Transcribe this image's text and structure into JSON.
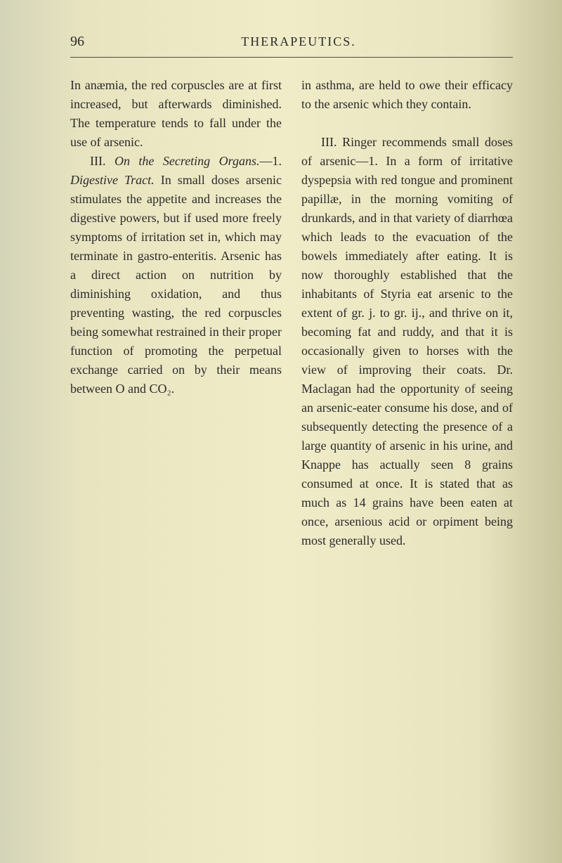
{
  "page_number": "96",
  "running_header": "THERAPEUTICS.",
  "left_column": {
    "para1": "In anæmia, the red corpuscles are at first increased, but afterwards diminished. The temperature tends to fall under the use of arsenic.",
    "para2_prefix": "III. ",
    "para2_italic1": "On the Secreting Organs.",
    "para2_mid1": "—1. ",
    "para2_italic2": "Digestive Tract.",
    "para2_rest": " In small doses arsenic stimulates the appetite and increases the digestive powers, but if used more freely symptoms of irritation set in, which may terminate in gastro-enteritis. Arsenic has a direct action on nutrition by diminishing oxidation, and thus preventing wasting, the red corpuscles being somewhat restrained in their proper function of promoting the perpetual exchange carried on by their means between O and CO₂."
  },
  "right_column": {
    "para1": "in asthma, are held to owe their efficacy to the arsenic which they contain.",
    "para2": "III. Ringer recommends small doses of arsenic—1. In a form of irritative dyspepsia with red tongue and prominent papillæ, in the morning vomiting of drunkards, and in that variety of diarrhœa which leads to the evacuation of the bowels immediately after eating. It is now thoroughly established that the inhabitants of Styria eat arsenic to the extent of gr. j. to gr. ij., and thrive on it, becoming fat and ruddy, and that it is occasionally given to horses with the view of improving their coats. Dr. Maclagan had the opportunity of seeing an arsenic-eater consume his dose, and of subsequently detecting the presence of a large quantity of arsenic in his urine, and Knappe has actually seen 8 grains consumed at once. It is stated that as much as 14 grains have been eaten at once, arsenious acid or orpiment being most generally used."
  },
  "colors": {
    "text": "#2a2a2a",
    "background_start": "#d4d4b8",
    "background_mid": "#f0ecc8",
    "background_end": "#c8c49c",
    "line": "#4a4a3a"
  },
  "typography": {
    "body_font": "Georgia, Times New Roman, serif",
    "body_size": 18,
    "line_height": 1.5,
    "header_size": 18,
    "page_num_size": 20
  }
}
